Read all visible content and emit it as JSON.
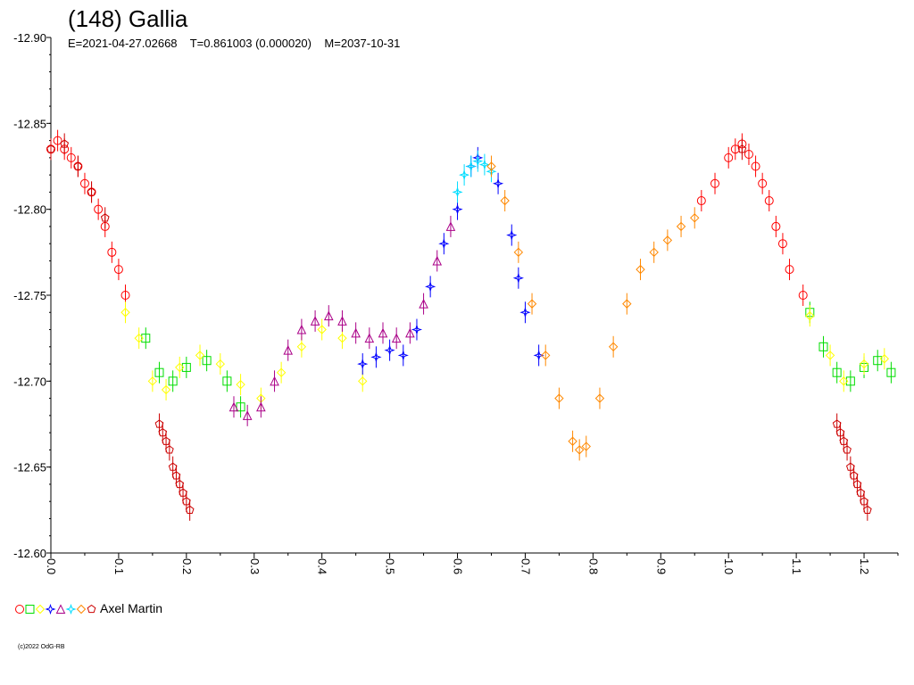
{
  "header": {
    "title": "(148) Gallia",
    "subtitle": "E=2021-04-27.02668    T=0.861003 (0.000020)    M=2037-10-31"
  },
  "legend": {
    "observer": "Axel Martin",
    "marker_colors": [
      "#ff0000",
      "#00dd00",
      "#ffff00",
      "#0000ff",
      "#aa0088",
      "#00ddff",
      "#ff8800",
      "#cc0000"
    ]
  },
  "footer": {
    "copyright": "(c)2022 OdG-RB"
  },
  "chart_data": {
    "type": "scatter",
    "title": "(148) Gallia",
    "x_range": [
      0,
      1.25
    ],
    "y_range": [
      -12.9,
      -12.6
    ],
    "y_inverted": true,
    "x_ticks": [
      "0.0",
      "0.1",
      "0.2",
      "0.3",
      "0.4",
      "0.5",
      "0.6",
      "0.7",
      "0.8",
      "0.9",
      "1.0",
      "1.1",
      "1.2"
    ],
    "y_ticks": [
      "-12.90",
      "-12.85",
      "-12.80",
      "-12.75",
      "-12.70",
      "-12.65",
      "-12.60"
    ],
    "series": [
      {
        "color": "#ff0000",
        "marker": "circle",
        "points": [
          [
            0.0,
            -12.835
          ],
          [
            0.01,
            -12.84
          ],
          [
            0.02,
            -12.835
          ],
          [
            0.03,
            -12.83
          ],
          [
            0.04,
            -12.825
          ],
          [
            0.05,
            -12.815
          ],
          [
            0.06,
            -12.81
          ],
          [
            0.07,
            -12.8
          ],
          [
            0.08,
            -12.79
          ],
          [
            0.09,
            -12.775
          ],
          [
            0.1,
            -12.765
          ],
          [
            0.11,
            -12.75
          ],
          [
            0.96,
            -12.805
          ],
          [
            0.98,
            -12.815
          ],
          [
            1.0,
            -12.83
          ],
          [
            1.01,
            -12.835
          ],
          [
            1.02,
            -12.838
          ],
          [
            1.03,
            -12.832
          ],
          [
            1.04,
            -12.825
          ],
          [
            1.05,
            -12.815
          ],
          [
            1.06,
            -12.805
          ],
          [
            1.07,
            -12.79
          ],
          [
            1.08,
            -12.78
          ],
          [
            1.09,
            -12.765
          ],
          [
            1.11,
            -12.75
          ]
        ]
      },
      {
        "color": "#00dd00",
        "marker": "square",
        "points": [
          [
            0.14,
            -12.725
          ],
          [
            0.16,
            -12.705
          ],
          [
            0.18,
            -12.7
          ],
          [
            0.2,
            -12.708
          ],
          [
            0.23,
            -12.712
          ],
          [
            0.26,
            -12.7
          ],
          [
            0.28,
            -12.685
          ],
          [
            1.12,
            -12.74
          ],
          [
            1.14,
            -12.72
          ],
          [
            1.16,
            -12.705
          ],
          [
            1.18,
            -12.7
          ],
          [
            1.2,
            -12.708
          ],
          [
            1.22,
            -12.712
          ],
          [
            1.24,
            -12.705
          ]
        ]
      },
      {
        "color": "#ffff00",
        "marker": "diamond",
        "points": [
          [
            0.11,
            -12.74
          ],
          [
            0.13,
            -12.725
          ],
          [
            0.15,
            -12.7
          ],
          [
            0.17,
            -12.695
          ],
          [
            0.19,
            -12.708
          ],
          [
            0.22,
            -12.715
          ],
          [
            0.25,
            -12.71
          ],
          [
            0.28,
            -12.698
          ],
          [
            0.31,
            -12.69
          ],
          [
            0.34,
            -12.705
          ],
          [
            0.37,
            -12.72
          ],
          [
            0.4,
            -12.73
          ],
          [
            0.43,
            -12.725
          ],
          [
            0.46,
            -12.7
          ],
          [
            1.12,
            -12.738
          ],
          [
            1.15,
            -12.715
          ],
          [
            1.17,
            -12.7
          ],
          [
            1.2,
            -12.71
          ],
          [
            1.23,
            -12.713
          ]
        ]
      },
      {
        "color": "#0000ff",
        "marker": "star",
        "points": [
          [
            0.46,
            -12.71
          ],
          [
            0.48,
            -12.714
          ],
          [
            0.5,
            -12.718
          ],
          [
            0.52,
            -12.715
          ],
          [
            0.54,
            -12.73
          ],
          [
            0.56,
            -12.755
          ],
          [
            0.58,
            -12.78
          ],
          [
            0.6,
            -12.8
          ],
          [
            0.62,
            -12.825
          ],
          [
            0.63,
            -12.83
          ],
          [
            0.66,
            -12.815
          ],
          [
            0.68,
            -12.785
          ],
          [
            0.69,
            -12.76
          ],
          [
            0.7,
            -12.74
          ],
          [
            0.72,
            -12.715
          ]
        ]
      },
      {
        "color": "#aa0088",
        "marker": "triangle",
        "points": [
          [
            0.27,
            -12.685
          ],
          [
            0.29,
            -12.68
          ],
          [
            0.31,
            -12.685
          ],
          [
            0.33,
            -12.7
          ],
          [
            0.35,
            -12.718
          ],
          [
            0.37,
            -12.73
          ],
          [
            0.39,
            -12.735
          ],
          [
            0.41,
            -12.738
          ],
          [
            0.43,
            -12.735
          ],
          [
            0.45,
            -12.728
          ],
          [
            0.47,
            -12.725
          ],
          [
            0.49,
            -12.728
          ],
          [
            0.51,
            -12.725
          ],
          [
            0.53,
            -12.728
          ],
          [
            0.55,
            -12.745
          ],
          [
            0.57,
            -12.77
          ],
          [
            0.59,
            -12.79
          ]
        ]
      },
      {
        "color": "#00ddff",
        "marker": "star",
        "points": [
          [
            0.6,
            -12.81
          ],
          [
            0.61,
            -12.82
          ],
          [
            0.62,
            -12.825
          ],
          [
            0.63,
            -12.828
          ],
          [
            0.64,
            -12.826
          ],
          [
            0.65,
            -12.822
          ]
        ]
      },
      {
        "color": "#ff8800",
        "marker": "diamond",
        "points": [
          [
            0.65,
            -12.825
          ],
          [
            0.67,
            -12.805
          ],
          [
            0.69,
            -12.775
          ],
          [
            0.71,
            -12.745
          ],
          [
            0.73,
            -12.715
          ],
          [
            0.75,
            -12.69
          ],
          [
            0.77,
            -12.665
          ],
          [
            0.78,
            -12.66
          ],
          [
            0.79,
            -12.662
          ],
          [
            0.81,
            -12.69
          ],
          [
            0.83,
            -12.72
          ],
          [
            0.85,
            -12.745
          ],
          [
            0.87,
            -12.765
          ],
          [
            0.89,
            -12.775
          ],
          [
            0.91,
            -12.782
          ],
          [
            0.93,
            -12.79
          ],
          [
            0.95,
            -12.795
          ]
        ]
      },
      {
        "color": "#cc0000",
        "marker": "pentagon",
        "points": [
          [
            0.0,
            -12.835
          ],
          [
            0.02,
            -12.838
          ],
          [
            0.04,
            -12.825
          ],
          [
            0.06,
            -12.81
          ],
          [
            0.08,
            -12.795
          ],
          [
            0.16,
            -12.675
          ],
          [
            0.165,
            -12.67
          ],
          [
            0.17,
            -12.665
          ],
          [
            0.175,
            -12.66
          ],
          [
            0.18,
            -12.65
          ],
          [
            0.185,
            -12.645
          ],
          [
            0.19,
            -12.64
          ],
          [
            0.195,
            -12.635
          ],
          [
            0.2,
            -12.63
          ],
          [
            0.205,
            -12.625
          ],
          [
            1.02,
            -12.835
          ],
          [
            1.16,
            -12.675
          ],
          [
            1.165,
            -12.67
          ],
          [
            1.17,
            -12.665
          ],
          [
            1.175,
            -12.66
          ],
          [
            1.18,
            -12.65
          ],
          [
            1.185,
            -12.645
          ],
          [
            1.19,
            -12.64
          ],
          [
            1.195,
            -12.635
          ],
          [
            1.2,
            -12.63
          ],
          [
            1.205,
            -12.625
          ]
        ]
      }
    ]
  }
}
